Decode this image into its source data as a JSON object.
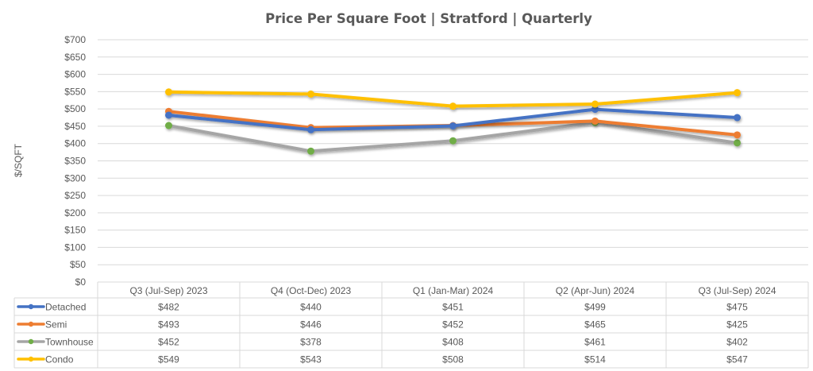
{
  "chart_data": {
    "type": "line",
    "title": "Price Per Square Foot | Stratford | Quarterly",
    "xlabel": "",
    "ylabel": "$/SQFT",
    "ylim": [
      0,
      700
    ],
    "ytick_step": 50,
    "ytick_labels": [
      "$0",
      "$50",
      "$100",
      "$150",
      "$200",
      "$250",
      "$300",
      "$350",
      "$400",
      "$450",
      "$500",
      "$550",
      "$600",
      "$650",
      "$700"
    ],
    "grid": true,
    "legend": "data-table-bottom",
    "categories": [
      "Q3 (Jul-Sep) 2023",
      "Q4 (Oct-Dec) 2023",
      "Q1 (Jan-Mar) 2024",
      "Q2 (Apr-Jun) 2024",
      "Q3 (Jul-Sep) 2024"
    ],
    "series": [
      {
        "name": "Detached",
        "color": "#4472c4",
        "marker_color": "#4472c4",
        "values": [
          482,
          440,
          451,
          499,
          475
        ],
        "labels": [
          "$482",
          "$440",
          "$451",
          "$499",
          "$475"
        ]
      },
      {
        "name": "Semi",
        "color": "#ed7d31",
        "marker_color": "#ed7d31",
        "values": [
          493,
          446,
          452,
          465,
          425
        ],
        "labels": [
          "$493",
          "$446",
          "$452",
          "$465",
          "$425"
        ]
      },
      {
        "name": "Townhouse",
        "color": "#a5a5a5",
        "marker_color": "#70ad47",
        "values": [
          452,
          378,
          408,
          461,
          402
        ],
        "labels": [
          "$452",
          "$378",
          "$408",
          "$461",
          "$402"
        ]
      },
      {
        "name": "Condo",
        "color": "#ffc000",
        "marker_color": "#ffc000",
        "values": [
          549,
          543,
          508,
          514,
          547
        ],
        "labels": [
          "$549",
          "$543",
          "$508",
          "$514",
          "$547"
        ]
      }
    ]
  }
}
